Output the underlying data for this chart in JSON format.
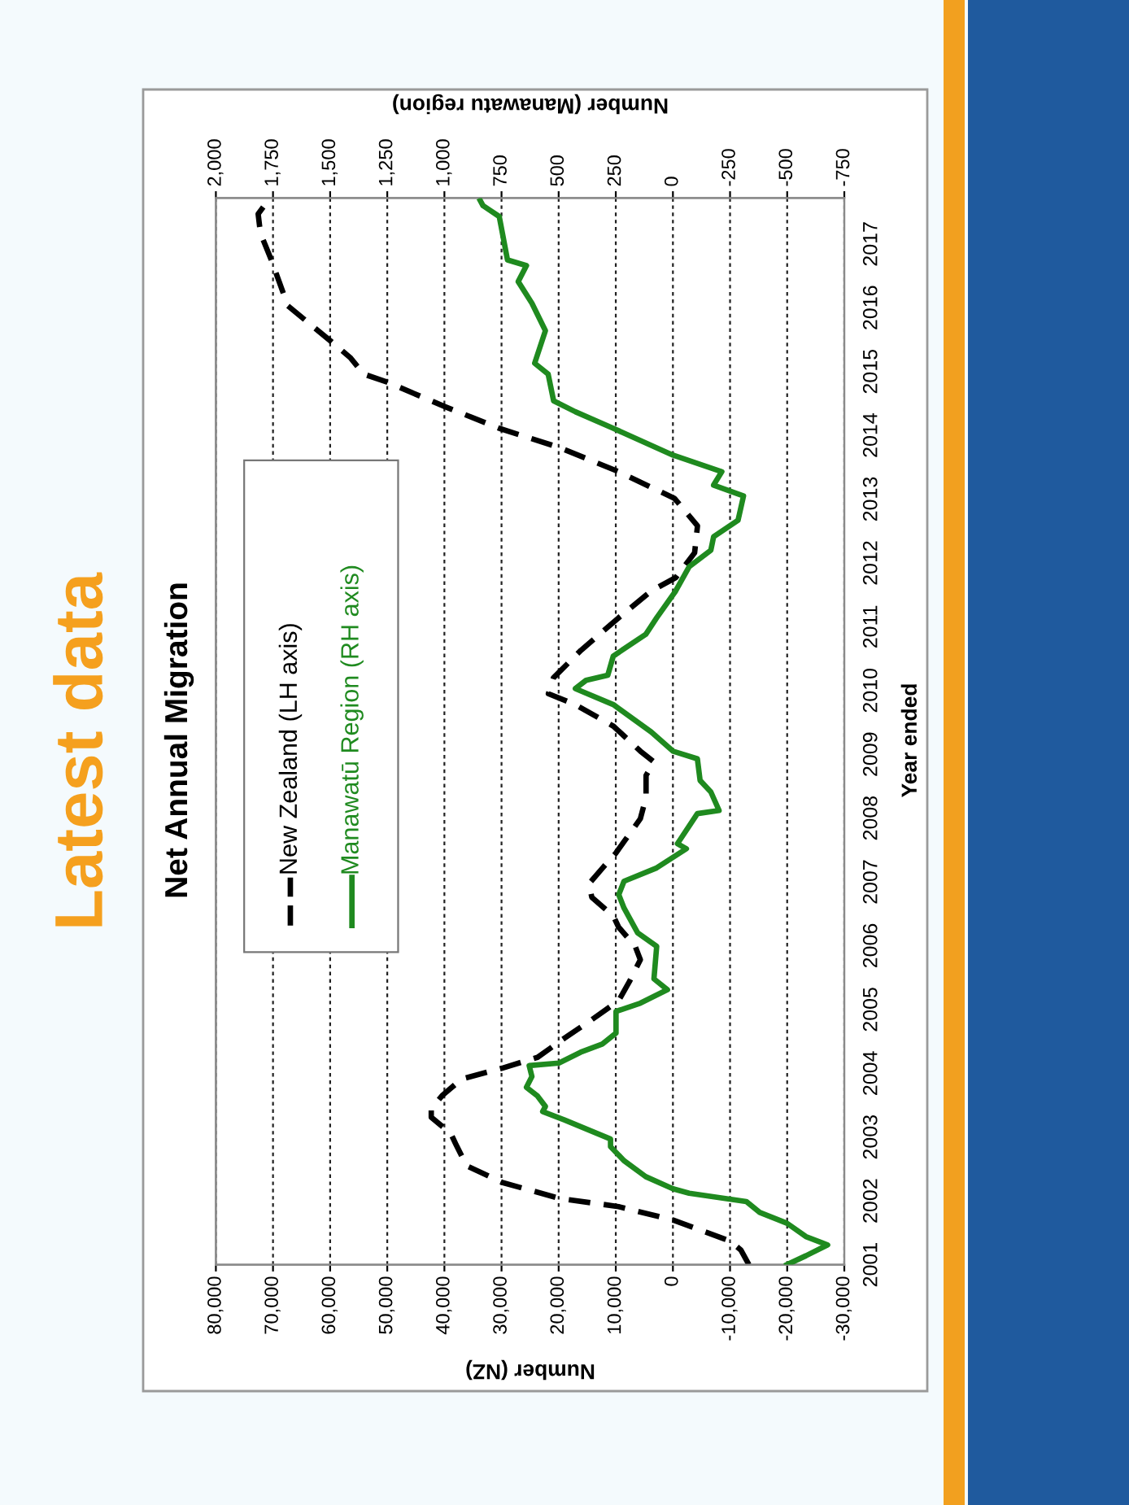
{
  "chart_data": {
    "type": "line",
    "title": "Latest data",
    "subtitle": "Net Annual Migration",
    "xlabel": "Number (NZ)",
    "x2label": "Number (Manawatu region)",
    "ylabel": "Year ended",
    "ylim": [
      2001,
      2017.72
    ],
    "yticks": [
      2001,
      2002,
      2003,
      2004,
      2005,
      2006,
      2007,
      2008,
      2009,
      2010,
      2011,
      2012,
      2013,
      2014,
      2015,
      2016,
      2017
    ],
    "xlim": [
      80000,
      -30000
    ],
    "xticks": [
      {
        "value": -30000,
        "label": "-30,000"
      },
      {
        "value": -20000,
        "label": "-20,000"
      },
      {
        "value": -10000,
        "label": "-10,000"
      },
      0,
      {
        "value": 10000,
        "label": "10,000"
      },
      {
        "value": 20000,
        "label": "20,000"
      },
      {
        "value": 30000,
        "label": "30,000"
      },
      {
        "value": 40000,
        "label": "40,000"
      },
      {
        "value": 50000,
        "label": "50,000"
      },
      {
        "value": 60000,
        "label": "60,000"
      },
      {
        "value": 70000,
        "label": "70,000"
      },
      {
        "value": 80000,
        "label": "80,000"
      }
    ],
    "x2lim": [
      2000,
      -750
    ],
    "x2ticks": [
      -750,
      -500,
      -250,
      0,
      250,
      500,
      750,
      {
        "value": 1000,
        "label": "1,000"
      },
      {
        "value": 1250,
        "label": "1,250"
      },
      {
        "value": 1500,
        "label": "1,500"
      },
      {
        "value": 1750,
        "label": "1,750"
      },
      {
        "value": 2000,
        "label": "2,000"
      }
    ],
    "grid": "x",
    "legend": "left",
    "series": [
      {
        "name": "New Zealand (LH axis)",
        "color": "#000000",
        "line_style": "dashed",
        "x": [
          -13300,
          -11900,
          -10000,
          0,
          9500,
          19900,
          29900,
          36100,
          38000,
          38900,
          42300,
          42300,
          40400,
          37000,
          29900,
          23700,
          19000,
          14200,
          9500,
          7600,
          5700,
          6600,
          9500,
          10400,
          14200,
          14700,
          12300,
          10000,
          5700,
          4700,
          4700,
          3300,
          5700,
          10400,
          17100,
          21800,
          20900,
          16100,
          9500,
          3800,
          -500,
          -3800,
          -4300,
          -300,
          9500,
          19900,
          30400,
          39900,
          49900,
          54100,
          56500,
          59800,
          67400,
          70300,
          72200,
          72600,
          71200
        ],
        "values": [
          2001.0,
          2001.23,
          2001.37,
          2001.7,
          2001.91,
          2002.04,
          2002.29,
          2002.55,
          2002.89,
          2003.06,
          2003.31,
          2003.44,
          2003.65,
          2003.91,
          2004.08,
          2004.25,
          2004.55,
          2004.84,
          2005.14,
          2005.44,
          2005.78,
          2005.99,
          2006.29,
          2006.46,
          2006.76,
          2006.97,
          2007.22,
          2007.45,
          2007.99,
          2008.33,
          2008.67,
          2008.88,
          2009.05,
          2009.44,
          2009.78,
          2009.95,
          2010.2,
          2010.63,
          2011.14,
          2011.56,
          2011.77,
          2012.16,
          2012.58,
          2013.01,
          2013.43,
          2013.81,
          2014.11,
          2014.45,
          2014.83,
          2014.96,
          2015.22,
          2015.47,
          2016.03,
          2016.75,
          2017.17,
          2017.47,
          2017.64
        ]
      },
      {
        "name": "Manawatū Region (RH axis)",
        "color": "#1f8a1f",
        "line_style": "solid",
        "axis": "x2",
        "x": [
          -499,
          -582,
          -677,
          -582,
          -499,
          -380,
          -321,
          -71,
          0,
          119,
          214,
          273,
          273,
          475,
          570,
          558,
          594,
          641,
          617,
          629,
          499,
          404,
          309,
          249,
          249,
          142,
          24,
          83,
          71,
          154,
          214,
          237,
          214,
          71,
          -59,
          -20,
          -107,
          -202,
          -166,
          -119,
          -107,
          0,
          95,
          261,
          427,
          380,
          285,
          261,
          119,
          71,
          -12,
          -71,
          -166,
          -178,
          -285,
          -309,
          -178,
          -214,
          0,
          261,
          427,
          522,
          546,
          605,
          558,
          617,
          677,
          641,
          724,
          760,
          831,
          843
        ],
        "values": [
          2001.0,
          2001.14,
          2001.31,
          2001.44,
          2001.65,
          2001.82,
          2001.99,
          2002.12,
          2002.19,
          2002.38,
          2002.63,
          2002.85,
          2002.97,
          2003.27,
          2003.4,
          2003.48,
          2003.65,
          2003.78,
          2003.95,
          2004.12,
          2004.16,
          2004.33,
          2004.46,
          2004.63,
          2004.97,
          2005.1,
          2005.31,
          2005.48,
          2005.99,
          2006.2,
          2006.59,
          2006.8,
          2007.01,
          2007.22,
          2007.52,
          2007.6,
          2008.07,
          2008.12,
          2008.41,
          2008.59,
          2008.93,
          2009.05,
          2009.35,
          2009.78,
          2010.03,
          2010.16,
          2010.24,
          2010.54,
          2010.88,
          2011.14,
          2011.56,
          2011.94,
          2012.2,
          2012.41,
          2012.67,
          2013.05,
          2013.22,
          2013.43,
          2013.69,
          2014.11,
          2014.37,
          2014.54,
          2014.96,
          2015.13,
          2015.64,
          2016.07,
          2016.41,
          2016.66,
          2016.75,
          2017.43,
          2017.6,
          2017.68
        ]
      }
    ]
  }
}
